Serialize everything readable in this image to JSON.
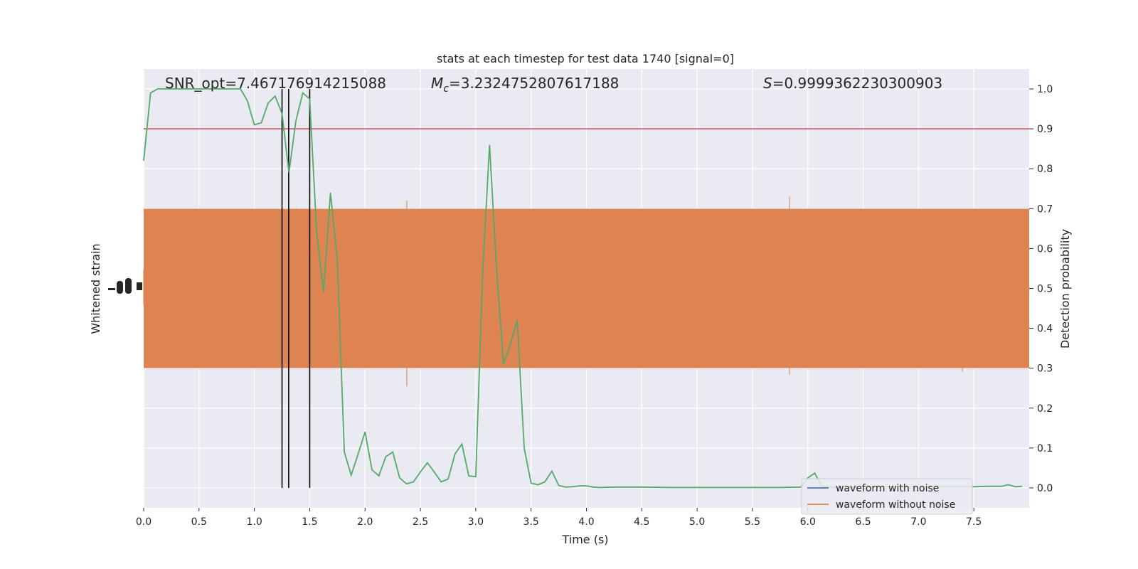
{
  "chart_data": {
    "type": "line",
    "title": "stats at each timestep for test data 1740 [signal=0]",
    "xlabel": "Time (s)",
    "ylabel_left": "Whitened strain",
    "ylabel_right": "Detection probability",
    "xlim": [
      0.0,
      8.0
    ],
    "ylim_right": [
      -0.05,
      1.05
    ],
    "x_ticks": [
      "0.0",
      "0.5",
      "1.0",
      "1.5",
      "2.0",
      "2.5",
      "3.0",
      "3.5",
      "4.0",
      "4.5",
      "5.0",
      "5.5",
      "6.0",
      "6.5",
      "7.0",
      "7.5"
    ],
    "x_tick_values": [
      0.0,
      0.5,
      1.0,
      1.5,
      2.0,
      2.5,
      3.0,
      3.5,
      4.0,
      4.5,
      5.0,
      5.5,
      6.0,
      6.5,
      7.0,
      7.5
    ],
    "y_ticks_right": [
      "0.0",
      "0.1",
      "0.2",
      "0.3",
      "0.4",
      "0.5",
      "0.6",
      "0.7",
      "0.8",
      "0.9",
      "1.0"
    ],
    "y_tick_values_right": [
      0.0,
      0.1,
      0.2,
      0.3,
      0.4,
      0.5,
      0.6,
      0.7,
      0.8,
      0.9,
      1.0
    ],
    "grid": true,
    "legend_position": "lower-right",
    "annotations": {
      "snr": "SNR_opt=7.467176914215088",
      "mc_symbol": "M",
      "mc_sub": "c",
      "mc_value": "=3.2324752807617188",
      "s_symbol": "S",
      "s_value": "=0.9999362230300903"
    },
    "threshold": 0.9,
    "vlines_x": [
      1.25,
      1.31,
      1.5
    ],
    "series": [
      {
        "name": "waveform with noise",
        "color": "#4c72b0",
        "style": "dense noise trace (hidden beneath waveform without noise)"
      },
      {
        "name": "waveform without noise",
        "color": "#dd8452",
        "style": "dense noise trace"
      },
      {
        "color": "#55a868",
        "x": [
          0.0,
          0.0625,
          0.125,
          0.1875,
          0.25,
          0.3125,
          0.375,
          0.4375,
          0.5,
          0.5625,
          0.625,
          0.6875,
          0.75,
          0.8125,
          0.875,
          0.9375,
          1.0,
          1.0625,
          1.125,
          1.1875,
          1.25,
          1.3125,
          1.375,
          1.4375,
          1.5,
          1.5625,
          1.625,
          1.6875,
          1.75,
          1.8125,
          1.875,
          1.9375,
          2.0,
          2.0625,
          2.125,
          2.1875,
          2.25,
          2.3125,
          2.375,
          2.4375,
          2.5,
          2.5625,
          2.625,
          2.6875,
          2.75,
          2.8125,
          2.875,
          2.9375,
          3.0,
          3.0625,
          3.125,
          3.1875,
          3.25,
          3.3125,
          3.375,
          3.4375,
          3.5,
          3.5625,
          3.625,
          3.6875,
          3.75,
          3.8125,
          3.875,
          3.9375,
          4.0,
          4.0625,
          4.125,
          4.25,
          4.5,
          4.75,
          5.0,
          5.25,
          5.5,
          5.75,
          5.9375,
          6.0,
          6.0625,
          6.125,
          6.1875,
          6.25,
          6.5,
          6.75,
          7.0,
          7.25,
          7.5,
          7.625,
          7.75,
          7.8125,
          7.875,
          7.9375
        ],
        "values": [
          0.82,
          0.99,
          1.0,
          1.0,
          1.0,
          1.0,
          1.0,
          1.0,
          1.0,
          1.0,
          1.0,
          1.0,
          1.0,
          1.0,
          1.0,
          0.97,
          0.91,
          0.915,
          0.965,
          0.982,
          0.938,
          0.79,
          0.92,
          0.99,
          0.975,
          0.64,
          0.49,
          0.74,
          0.57,
          0.09,
          0.032,
          0.085,
          0.14,
          0.045,
          0.03,
          0.078,
          0.09,
          0.025,
          0.01,
          0.015,
          0.04,
          0.063,
          0.04,
          0.015,
          0.022,
          0.085,
          0.11,
          0.03,
          0.028,
          0.54,
          0.86,
          0.55,
          0.31,
          0.36,
          0.42,
          0.1,
          0.012,
          0.008,
          0.015,
          0.042,
          0.006,
          0.002,
          0.003,
          0.005,
          0.005,
          0.002,
          0.001,
          0.002,
          0.002,
          0.001,
          0.001,
          0.001,
          0.001,
          0.001,
          0.002,
          0.025,
          0.037,
          0.004,
          0.002,
          0.001,
          0.003,
          0.003,
          0.002,
          0.003,
          0.003,
          0.004,
          0.004,
          0.008,
          0.003,
          0.004
        ]
      }
    ]
  }
}
